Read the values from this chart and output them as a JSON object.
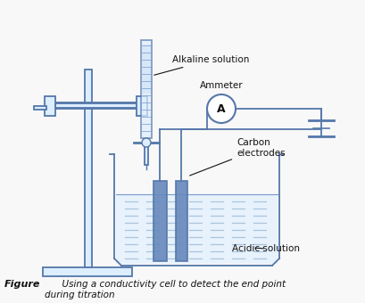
{
  "figure_label": "Figure",
  "figure_caption": "      Using a conductivity cell to detect the end point\nduring titration",
  "labels": {
    "alkaline": "Alkaline solution",
    "ammeter": "Ammeter",
    "carbon": "Carbon\nelectrodes",
    "acidic": "Acidic solution"
  },
  "colors": {
    "blue_dark": "#5577aa",
    "blue_mid": "#7799cc",
    "blue_light": "#aac4dd",
    "blue_pale": "#ddeeff",
    "blue_fill": "#99bbdd",
    "electrode_fill": "#6688bb",
    "solution_fill": "#ddeeff",
    "line": "#5577aa",
    "text": "#111111",
    "background": "#f8f8f8"
  },
  "figsize": [
    4.09,
    3.4
  ],
  "dpi": 100
}
